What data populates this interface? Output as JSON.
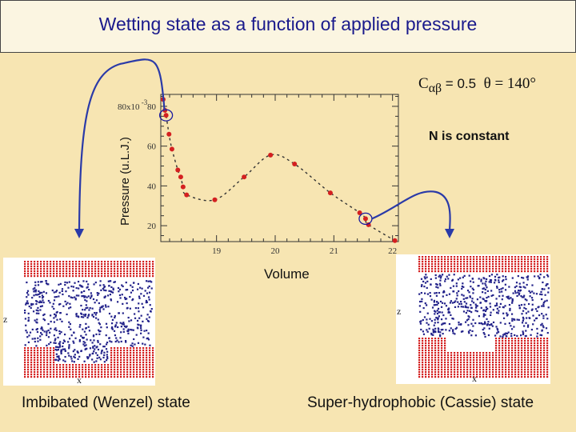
{
  "title": "Wetting state as a function of applied pressure",
  "params": {
    "c_symbol": "C",
    "c_sub": "αβ",
    "c_value": "= 0.5",
    "theta": "θ = 140°"
  },
  "note": "N is constant",
  "chart_data": {
    "type": "scatter",
    "title": "",
    "xlabel": "Volume",
    "ylabel": "Pressure (u.L.J.)",
    "y_multiplier_label": "x10",
    "y_multiplier_exp": "-3",
    "x_ticks": [
      "19",
      "20",
      "21",
      "22"
    ],
    "y_ticks": [
      "20",
      "40",
      "60",
      "80"
    ],
    "xlim": [
      18.05,
      22.1
    ],
    "ylim": [
      0.012,
      0.086
    ],
    "grid": false,
    "points": [
      {
        "x": 18.09,
        "y": 0.0835
      },
      {
        "x": 18.12,
        "y": 0.078
      },
      {
        "x": 18.14,
        "y": 0.0755
      },
      {
        "x": 18.19,
        "y": 0.066
      },
      {
        "x": 18.24,
        "y": 0.0585
      },
      {
        "x": 18.34,
        "y": 0.048
      },
      {
        "x": 18.39,
        "y": 0.0445
      },
      {
        "x": 18.43,
        "y": 0.0395
      },
      {
        "x": 18.49,
        "y": 0.0355
      },
      {
        "x": 18.97,
        "y": 0.033
      },
      {
        "x": 19.47,
        "y": 0.0445
      },
      {
        "x": 19.92,
        "y": 0.0555
      },
      {
        "x": 20.33,
        "y": 0.051
      },
      {
        "x": 20.94,
        "y": 0.0365
      },
      {
        "x": 21.44,
        "y": 0.0265
      },
      {
        "x": 21.54,
        "y": 0.0235
      },
      {
        "x": 21.59,
        "y": 0.0205
      },
      {
        "x": 22.04,
        "y": 0.0125
      }
    ],
    "highlighted_points": [
      {
        "x": 18.14,
        "y": 0.0755
      },
      {
        "x": 21.54,
        "y": 0.0235
      }
    ]
  },
  "panels": {
    "left": {
      "axis_x": "x",
      "axis_z": "z",
      "caption": "Imbibated (Wenzel) state"
    },
    "right": {
      "axis_x": "x",
      "axis_z": "z",
      "caption": "Super-hydrophobic (Cassie) state"
    }
  },
  "colors": {
    "background": "#f7e5b2",
    "title": "#1a1a8c",
    "data_point": "#d42020",
    "circle": "#1a1aa0",
    "arrow": "#2a3aa8",
    "solid_dots": "#d42020",
    "liquid_dots": "#22228a"
  }
}
